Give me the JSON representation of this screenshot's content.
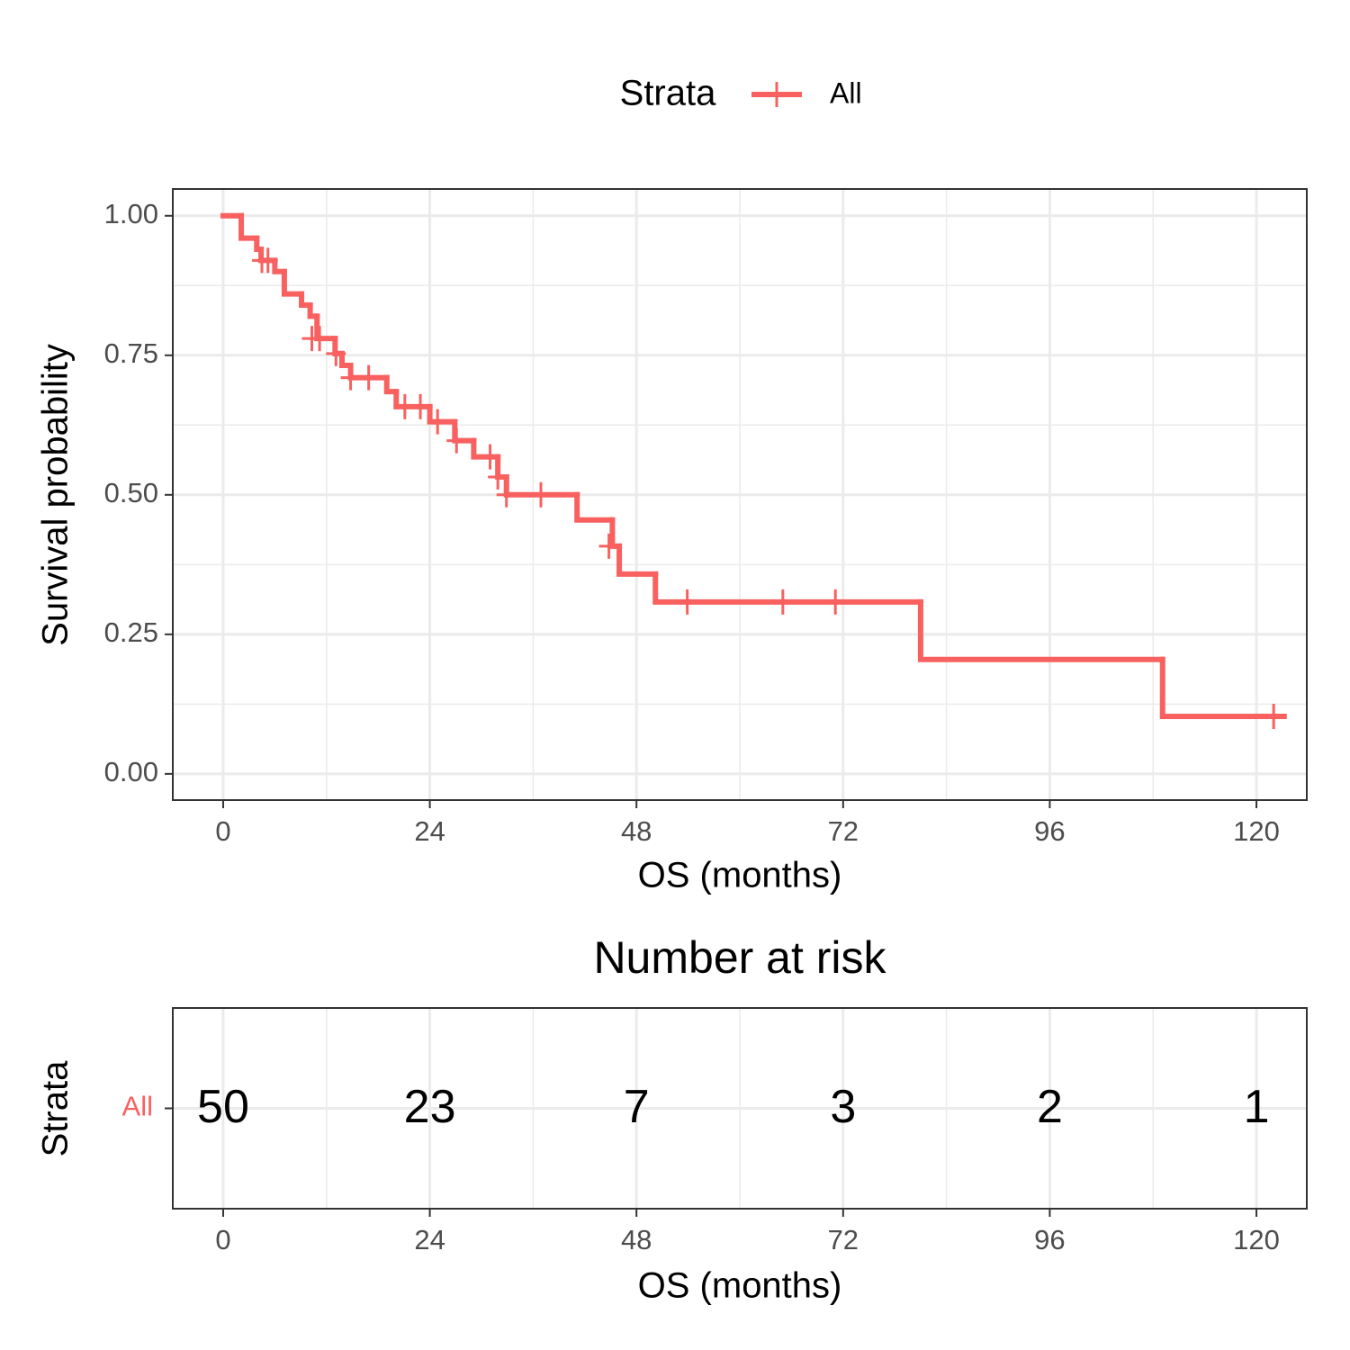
{
  "chart_data": [
    {
      "type": "step",
      "legend_title": "Strata",
      "x_label": "OS (months)",
      "y_label": "Survival probability",
      "xlim": [
        -5.85,
        125.85
      ],
      "ylim": [
        -0.047,
        1.048
      ],
      "xticks": [
        0,
        24,
        48,
        72,
        96,
        120
      ],
      "yticks": [
        {
          "value": 0,
          "label": "0.00"
        },
        {
          "value": 0.25,
          "label": "0.25"
        },
        {
          "value": 0.5,
          "label": "0.50"
        },
        {
          "value": 0.75,
          "label": "0.75"
        },
        {
          "value": 1,
          "label": "1.00"
        }
      ],
      "x_minor_grid": [
        12,
        36,
        60,
        84,
        108
      ],
      "y_minor_grid": [
        0.125,
        0.375,
        0.625,
        0.875
      ],
      "grid": true,
      "legend": "top",
      "series": [
        {
          "name": "All",
          "color": "#f8615f",
          "x": [
            0,
            2.1,
            3.9,
            4.4,
            6.0,
            7.1,
            9.1,
            10.1,
            10.9,
            13.0,
            13.8,
            14.8,
            19.0,
            20.1,
            24.0,
            26.9,
            29.1,
            31.9,
            32.9,
            41.1,
            45.2,
            46.0,
            50.2,
            81.0,
            109.1,
            123.2
          ],
          "values": [
            1.0,
            0.96,
            0.94,
            0.92,
            0.9,
            0.86,
            0.84,
            0.82,
            0.78,
            0.753,
            0.732,
            0.71,
            0.685,
            0.658,
            0.631,
            0.597,
            0.568,
            0.532,
            0.5,
            0.455,
            0.408,
            0.358,
            0.308,
            0.205,
            0.103,
            0.103
          ],
          "censored": {
            "x": [
              4.5,
              5.2,
              10.3,
              11.2,
              13.1,
              14.8,
              16.9,
              21.1,
              22.9,
              24.9,
              27.1,
              31.0,
              31.9,
              32.9,
              36.9,
              44.8,
              53.9,
              65.0,
              71.1,
              122.0
            ],
            "values": [
              0.92,
              0.92,
              0.78,
              0.78,
              0.753,
              0.71,
              0.71,
              0.658,
              0.658,
              0.631,
              0.597,
              0.568,
              0.532,
              0.5,
              0.5,
              0.408,
              0.308,
              0.308,
              0.308,
              0.103
            ]
          }
        }
      ]
    },
    {
      "type": "risk_table",
      "title": "Number at risk",
      "x_label": "OS (months)",
      "y_label": "Strata",
      "xlim": [
        -5.85,
        125.85
      ],
      "xticks": [
        0,
        24,
        48,
        72,
        96,
        120
      ],
      "x_minor_grid": [
        12,
        36,
        60,
        84,
        108
      ],
      "rows": [
        {
          "name": "All",
          "color": "#f8615f",
          "x": [
            0,
            24,
            48,
            72,
            96,
            120
          ],
          "values": [
            50,
            23,
            7,
            3,
            2,
            1
          ]
        }
      ]
    }
  ]
}
